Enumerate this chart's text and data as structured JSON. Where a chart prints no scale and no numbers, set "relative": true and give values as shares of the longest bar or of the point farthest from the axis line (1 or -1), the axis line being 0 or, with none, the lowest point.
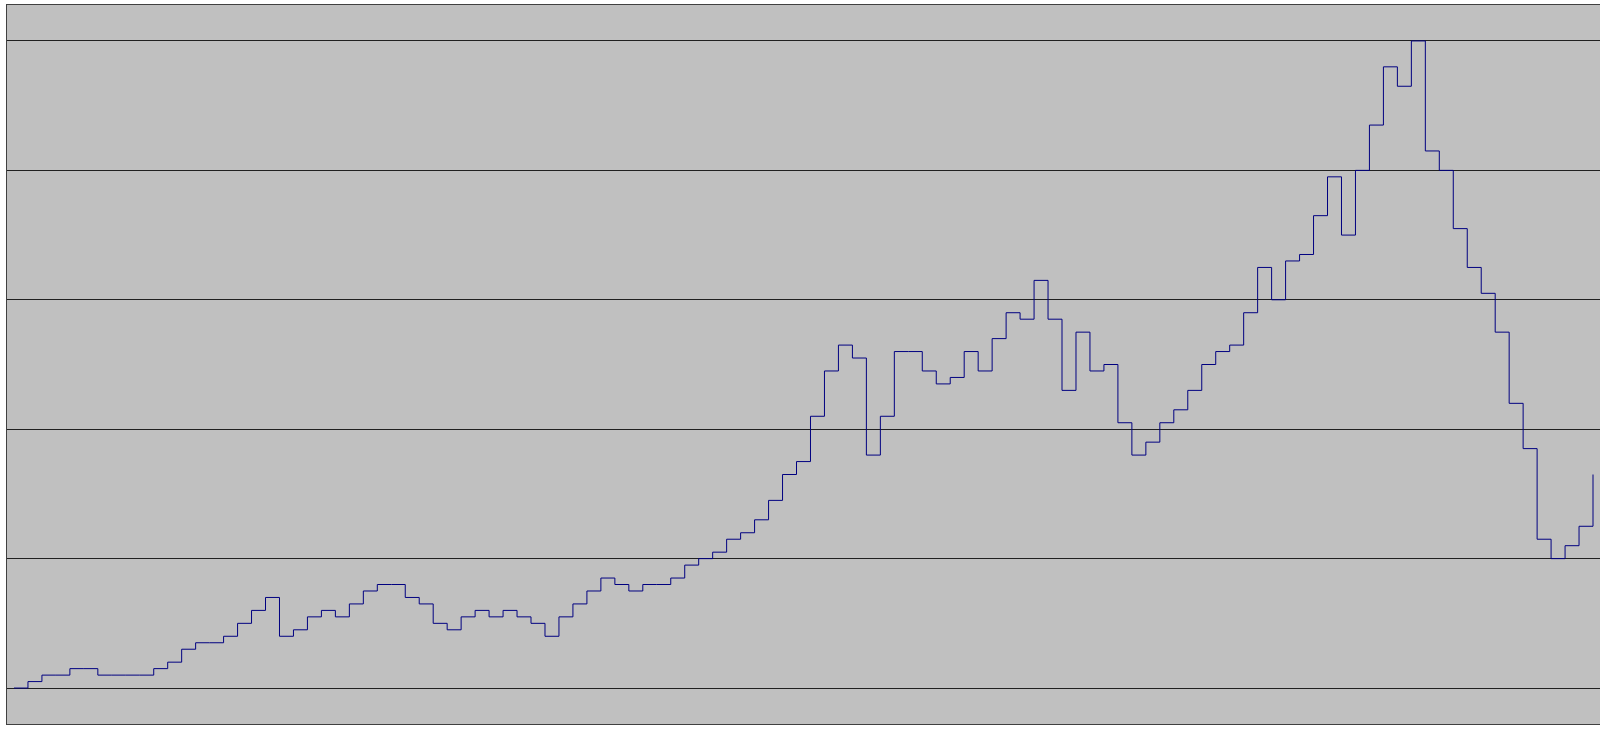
{
  "chart_data": {
    "type": "step",
    "relative": true,
    "grid": "y",
    "marker": "none",
    "line_style": "solid",
    "categories": [
      null,
      null,
      null,
      null,
      null,
      null,
      null,
      null,
      null,
      null,
      null,
      null,
      null,
      null,
      null,
      null,
      null,
      null,
      null,
      null,
      null,
      null,
      null,
      null,
      null,
      null,
      null,
      null,
      null,
      null,
      null,
      null,
      null,
      null,
      null,
      null,
      null,
      null,
      null,
      null,
      null,
      null,
      null,
      null,
      null,
      null,
      null,
      null,
      null,
      null,
      null,
      null,
      null,
      null,
      null,
      null,
      null,
      null,
      null,
      null,
      null,
      null,
      null,
      null,
      null,
      null,
      null,
      null,
      null,
      null,
      null,
      null,
      null,
      null,
      null,
      null,
      null,
      null,
      null,
      null,
      null,
      null,
      null,
      null,
      null,
      null,
      null,
      null,
      null,
      null,
      null,
      null,
      null,
      null,
      null,
      null,
      null,
      null,
      null,
      null,
      null,
      null,
      null,
      null,
      null,
      null,
      null,
      null,
      null,
      null,
      null,
      null,
      null,
      null
    ],
    "series": [
      {
        "color": "#000080",
        "values": [
          0,
          0.01,
          0.02,
          0.02,
          0.03,
          0.03,
          0.02,
          0.02,
          0.02,
          0.02,
          0.03,
          0.04,
          0.06,
          0.07,
          0.07,
          0.08,
          0.1,
          0.12,
          0.14,
          0.08,
          0.09,
          0.11,
          0.12,
          0.11,
          0.13,
          0.15,
          0.16,
          0.16,
          0.14,
          0.13,
          0.1,
          0.09,
          0.11,
          0.12,
          0.11,
          0.12,
          0.11,
          0.1,
          0.08,
          0.11,
          0.13,
          0.15,
          0.17,
          0.16,
          0.15,
          0.16,
          0.16,
          0.17,
          0.19,
          0.2,
          0.21,
          0.23,
          0.24,
          0.26,
          0.29,
          0.33,
          0.35,
          0.42,
          0.49,
          0.53,
          0.51,
          0.36,
          0.42,
          0.52,
          0.52,
          0.49,
          0.47,
          0.48,
          0.52,
          0.49,
          0.54,
          0.58,
          0.57,
          0.63,
          0.57,
          0.46,
          0.55,
          0.49,
          0.5,
          0.41,
          0.36,
          0.38,
          0.41,
          0.43,
          0.46,
          0.5,
          0.52,
          0.53,
          0.58,
          0.65,
          0.6,
          0.66,
          0.67,
          0.73,
          0.79,
          0.7,
          0.8,
          0.87,
          0.96,
          0.93,
          1,
          0.83,
          0.8,
          0.71,
          0.65,
          0.61,
          0.55,
          0.44,
          0.37,
          0.23,
          0.2,
          0.22,
          0.25,
          0.33
        ]
      }
    ]
  }
}
